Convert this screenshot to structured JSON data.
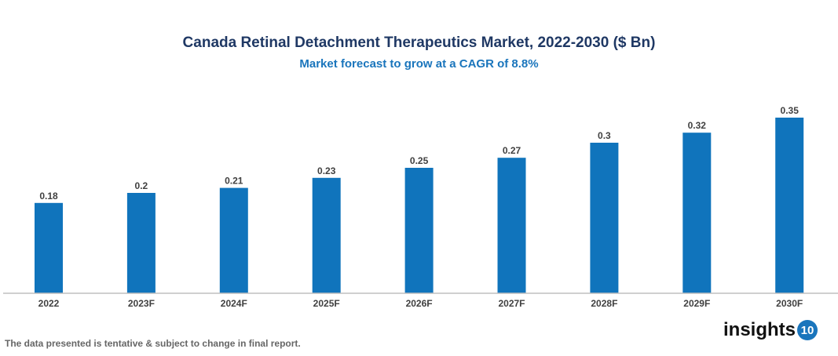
{
  "chart_data": {
    "type": "bar",
    "title": "Canada Retinal Detachment Therapeutics Market, 2022-2030 ($ Bn)",
    "subtitle": "Market forecast to grow at a CAGR of 8.8%",
    "categories": [
      "2022",
      "2023F",
      "2024F",
      "2025F",
      "2026F",
      "2027F",
      "2028F",
      "2029F",
      "2030F"
    ],
    "values": [
      0.18,
      0.2,
      0.21,
      0.23,
      0.25,
      0.27,
      0.3,
      0.32,
      0.35
    ],
    "xlabel": "",
    "ylabel": "",
    "ylim": [
      0,
      0.35
    ],
    "grid": false,
    "bar_color": "#1074bc"
  },
  "footnote": "The data presented is tentative & subject to change in final report.",
  "logo": {
    "text": "insights",
    "badge": "10"
  }
}
